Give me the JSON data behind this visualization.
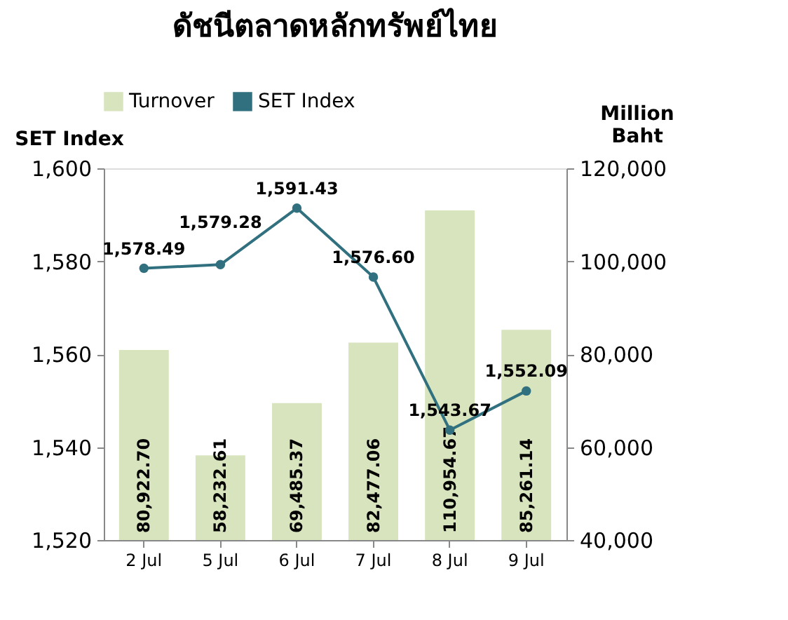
{
  "chart_data": {
    "type": "bar",
    "title": "ดัชนีตลาดหลักทรัพย์ไทย",
    "ylabel": "SET Index",
    "y2label": "Million Baht",
    "categories": [
      "2 Jul",
      "5 Jul",
      "6 Jul",
      "7 Jul",
      "8 Jul",
      "9 Jul"
    ],
    "series": [
      {
        "name": "Turnover",
        "axis": "y2",
        "color": "#d7e4bd",
        "values": [
          80922.7,
          58232.61,
          69485.37,
          82477.06,
          110954.67,
          85261.14
        ],
        "value_labels": [
          "80,922.70",
          "58,232.61",
          "69,485.37",
          "82,477.06",
          "110,954.67",
          "85,261.14"
        ]
      },
      {
        "name": "SET Index",
        "type": "line",
        "axis": "y",
        "color": "#31707f",
        "marker": "circle",
        "values": [
          1578.49,
          1579.28,
          1591.43,
          1576.6,
          1543.67,
          1552.09
        ],
        "value_labels": [
          "1,578.49",
          "1,579.28",
          "1,591.43",
          "1,576.60",
          "1,543.67",
          "1,552.09"
        ]
      }
    ],
    "ylim": [
      1520,
      1600
    ],
    "yticks": [
      {
        "value": 1520,
        "label": "1,520"
      },
      {
        "value": 1540,
        "label": "1,540"
      },
      {
        "value": 1560,
        "label": "1,560"
      },
      {
        "value": 1580,
        "label": "1,580"
      },
      {
        "value": 1600,
        "label": "1,600"
      }
    ],
    "y2lim": [
      40000,
      120000
    ],
    "y2ticks": [
      {
        "value": 40000,
        "label": "40,000"
      },
      {
        "value": 60000,
        "label": "60,000"
      },
      {
        "value": 80000,
        "label": "80,000"
      },
      {
        "value": 100000,
        "label": "100,000"
      },
      {
        "value": 120000,
        "label": "120,000"
      }
    ],
    "legend": "top",
    "grid": false
  }
}
